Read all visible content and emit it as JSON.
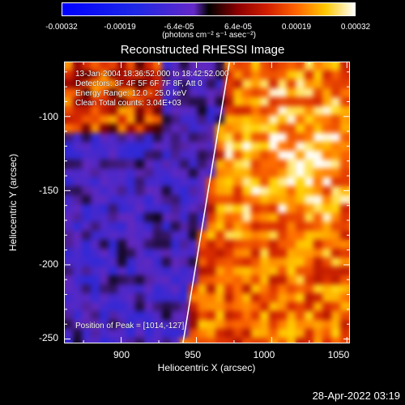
{
  "colorbar": {
    "ticks": [
      "-0.00032",
      "-0.00019",
      "-6.4e-05",
      "6.4e-05",
      "0.00019",
      "0.00032"
    ],
    "unit_label": "(photons cm⁻² s⁻¹ asec⁻²)"
  },
  "chart_data": {
    "type": "heatmap",
    "title": "Reconstructed RHESSI Image",
    "xlabel": "Heliocentric X (arcsec)",
    "ylabel": "Heliocentric Y (arcsec)",
    "xlim": [
      862,
      1052
    ],
    "ylim": [
      -253,
      -63
    ],
    "x_ticks": [
      900,
      950,
      1000,
      1050
    ],
    "y_ticks": [
      -100,
      -150,
      -200,
      -250
    ],
    "colorbar_range": [
      -0.00032,
      0.00032
    ],
    "annotations": [
      "13-Jan-2004 18:36:52.000 to 18:42:52.000",
      "Detectors: 3F 4F 5F 6F 7F 8F, Att 0",
      "Energy Range: 12.0 - 25.0 keV",
      "Clean     Total counts: 3.04E+03"
    ],
    "peak_label": "Position of Peak = [1014,-127]",
    "peak_position": [
      1014,
      -127
    ],
    "limb_line": [
      [
        941,
        -253
      ],
      [
        972,
        -63
      ]
    ]
  },
  "timestamp": "28-Apr-2022 03:19"
}
